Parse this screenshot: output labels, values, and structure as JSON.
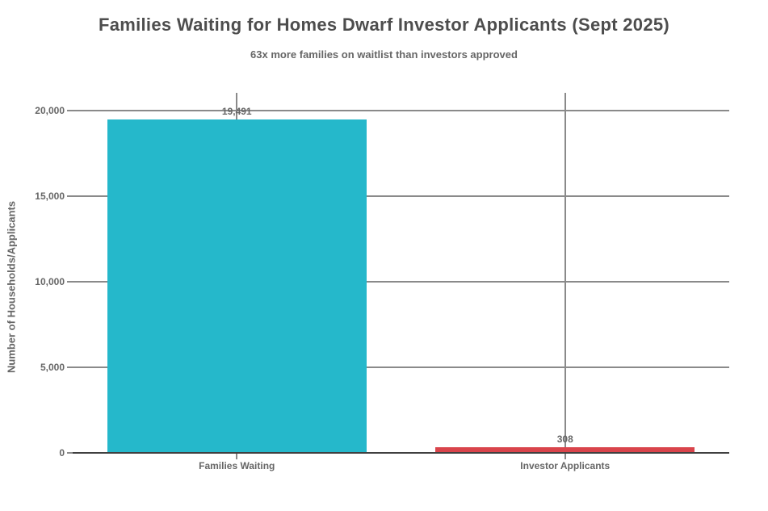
{
  "chart_data": {
    "type": "bar",
    "title": "Families Waiting for Homes Dwarf Investor Applicants (Sept 2025)",
    "subtitle": "63x more families on waitlist than investors approved",
    "ylabel": "Number of Households/Applicants",
    "xlabel": "",
    "categories": [
      "Families Waiting",
      "Investor Applicants"
    ],
    "values": [
      19491,
      308
    ],
    "value_labels": [
      "19,491",
      "308"
    ],
    "bar_colors": [
      "#25b8cb",
      "#d9444b"
    ],
    "ylim": [
      0,
      20000
    ],
    "yticks": [
      {
        "value": 0,
        "label": "0"
      },
      {
        "value": 5000,
        "label": "5,000"
      },
      {
        "value": 10000,
        "label": "10,000"
      },
      {
        "value": 15000,
        "label": "15,000"
      },
      {
        "value": 20000,
        "label": "20,000"
      }
    ],
    "grid": true,
    "legend_position": "none"
  },
  "colors": {
    "background": "#ffffff",
    "grid": "#8a8a8a",
    "axis": "#404040",
    "title_text": "#4d4d4d",
    "text": "#666666"
  }
}
